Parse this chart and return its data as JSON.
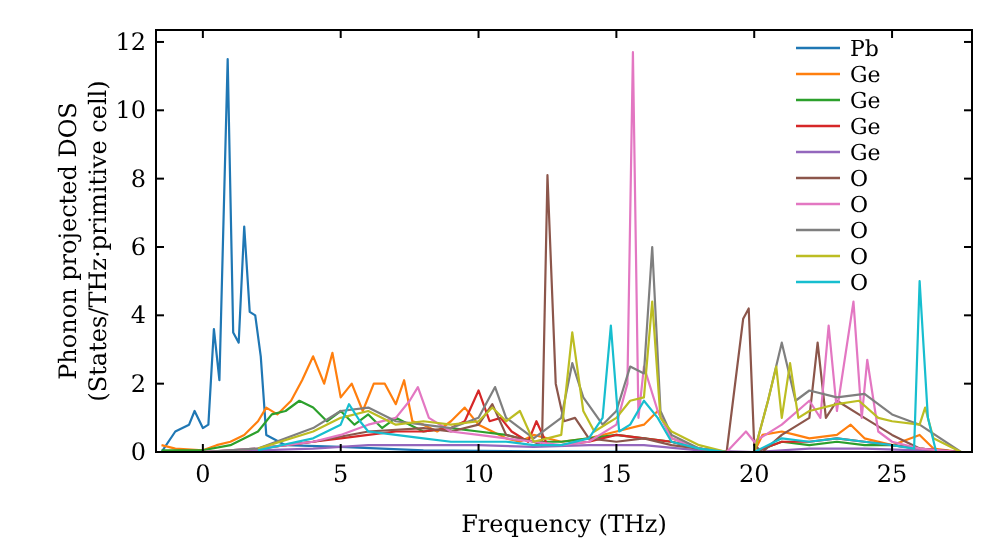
{
  "chart_data": {
    "type": "line",
    "xlabel": "Frequency (THz)",
    "ylabel": "Phonon projected DOS\n(States/THz·primitive cell)",
    "xlim": [
      -1.7,
      27.9
    ],
    "ylim": [
      0,
      12.35
    ],
    "xticks": [
      0,
      5,
      10,
      15,
      20,
      25
    ],
    "yticks": [
      0,
      2,
      4,
      6,
      8,
      10,
      12
    ],
    "grid": false,
    "legend": "top right",
    "marker": "none",
    "line_style": "solid",
    "series": [
      {
        "name": "Pb",
        "color": "#1f77b4",
        "x": [
          -1.5,
          -1,
          -0.5,
          -0.3,
          0,
          0.2,
          0.4,
          0.6,
          0.9,
          1.1,
          1.3,
          1.5,
          1.7,
          1.9,
          2.1,
          2.3,
          3,
          5,
          8,
          12,
          18,
          27.5
        ],
        "values": [
          0,
          0.6,
          0.8,
          1.2,
          0.7,
          0.8,
          3.6,
          2.1,
          11.5,
          3.5,
          3.2,
          6.6,
          4.1,
          4.0,
          2.8,
          0.5,
          0.2,
          0.15,
          0.05,
          0.02,
          0,
          0
        ]
      },
      {
        "name": "Ge",
        "color": "#ff7f0e",
        "x": [
          -1.5,
          -1,
          0,
          0.5,
          1,
          1.5,
          2,
          2.3,
          2.7,
          3.2,
          3.6,
          4,
          4.4,
          4.7,
          5,
          5.4,
          5.8,
          6.2,
          6.6,
          7,
          7.3,
          7.6,
          8,
          8.5,
          9,
          9.5,
          10,
          10.5,
          11,
          11.5,
          12,
          13,
          14,
          15,
          16,
          16.5,
          17,
          18,
          19,
          20,
          20.3,
          21,
          21.5,
          22,
          23,
          23.5,
          24,
          25,
          26,
          26.5,
          27.5
        ],
        "values": [
          0.2,
          0.1,
          0.05,
          0.2,
          0.3,
          0.5,
          0.9,
          1.3,
          1.1,
          1.5,
          2.1,
          2.8,
          2.0,
          2.9,
          1.6,
          2.0,
          1.2,
          2.0,
          2.0,
          1.4,
          2.1,
          0.9,
          0.8,
          0.6,
          0.9,
          1.3,
          0.8,
          0.6,
          0.4,
          0.3,
          0.5,
          0.3,
          0.4,
          0.6,
          0.8,
          1.2,
          0.4,
          0.1,
          0,
          0,
          0.5,
          0.6,
          0.5,
          0.4,
          0.5,
          0.8,
          0.4,
          0.2,
          0.5,
          0.1,
          0
        ]
      },
      {
        "name": "Ge",
        "color": "#2ca02c",
        "x": [
          -1.5,
          0,
          1,
          2,
          2.5,
          3,
          3.5,
          4,
          4.5,
          5,
          5.5,
          6,
          6.5,
          7,
          7.5,
          8,
          9,
          10,
          11,
          12,
          13,
          14,
          15,
          16,
          17,
          18,
          19,
          20,
          21,
          22,
          23,
          24,
          25,
          26,
          27.5
        ],
        "values": [
          0.05,
          0.05,
          0.2,
          0.6,
          1.1,
          1.2,
          1.5,
          1.3,
          0.9,
          1.2,
          0.8,
          1.1,
          0.7,
          1.0,
          0.8,
          0.6,
          0.7,
          0.6,
          0.5,
          0.3,
          0.3,
          0.4,
          0.5,
          0.4,
          0.3,
          0.1,
          0,
          0,
          0.3,
          0.2,
          0.3,
          0.2,
          0.2,
          0.1,
          0
        ]
      },
      {
        "name": "Ge",
        "color": "#d62728",
        "x": [
          2,
          4,
          5,
          6,
          7,
          8,
          9,
          9.5,
          10,
          10.4,
          10.8,
          11.2,
          11.8,
          12.1,
          12.5,
          13,
          14,
          15,
          16,
          17,
          18,
          19,
          20,
          21,
          22,
          23,
          24,
          25,
          26,
          27.5
        ],
        "values": [
          0.1,
          0.3,
          0.4,
          0.5,
          0.6,
          0.6,
          0.7,
          0.9,
          1.8,
          0.9,
          1.0,
          0.6,
          0.3,
          0.9,
          0.2,
          0.2,
          0.3,
          0.5,
          0.4,
          0.3,
          0.1,
          0,
          0,
          0.3,
          0.3,
          0.4,
          0.3,
          0.2,
          0.1,
          0
        ]
      },
      {
        "name": "Ge",
        "color": "#9467bd",
        "x": [
          -1.5,
          0,
          2,
          4,
          6,
          8,
          10,
          12,
          14,
          16,
          18,
          20,
          22,
          24,
          26,
          27.5
        ],
        "values": [
          0,
          0,
          0.05,
          0.1,
          0.2,
          0.2,
          0.2,
          0.15,
          0.2,
          0.2,
          0.05,
          0,
          0.1,
          0.1,
          0.05,
          0
        ]
      },
      {
        "name": "O",
        "color": "#8c564b",
        "x": [
          -1.5,
          0,
          2,
          4,
          6,
          8,
          9,
          10,
          10.5,
          11,
          12,
          12.3,
          12.5,
          12.8,
          13.1,
          13.5,
          14,
          15,
          16,
          17,
          18,
          19,
          19.6,
          19.8,
          20,
          20.3,
          21,
          22,
          22.3,
          22.6,
          23,
          24,
          25,
          26,
          27.5
        ],
        "values": [
          0,
          0,
          0.1,
          0.3,
          0.6,
          0.7,
          0.6,
          0.8,
          1.4,
          0.5,
          0.3,
          0.2,
          8.1,
          2.0,
          0.9,
          1.0,
          0.4,
          0.3,
          0.4,
          0.2,
          0.1,
          0,
          3.9,
          4.2,
          0.2,
          0,
          0.5,
          1.0,
          3.2,
          1.0,
          1.5,
          1.0,
          0.5,
          0.1,
          0
        ]
      },
      {
        "name": "O",
        "color": "#e377c2",
        "x": [
          -1.5,
          0,
          2,
          4,
          5,
          6,
          7,
          7.5,
          7.8,
          8.2,
          9,
          10,
          11,
          12,
          13,
          14,
          15,
          15.4,
          15.6,
          15.8,
          16,
          16.5,
          17,
          18,
          19,
          19.7,
          20,
          21,
          22,
          22.4,
          22.7,
          23,
          23.6,
          23.9,
          24.1,
          24.5,
          25,
          26,
          27.5
        ],
        "values": [
          0,
          0,
          0.1,
          0.3,
          0.5,
          0.8,
          1.0,
          1.5,
          1.9,
          1.0,
          0.6,
          0.5,
          0.4,
          0.3,
          0.2,
          0.3,
          0.8,
          2.0,
          11.7,
          1.0,
          2.5,
          1.2,
          0.4,
          0.1,
          0,
          0.6,
          0.3,
          0.8,
          1.5,
          1.0,
          3.7,
          1.2,
          4.4,
          1.0,
          2.7,
          0.6,
          0.3,
          0.1,
          0
        ]
      },
      {
        "name": "O",
        "color": "#7f7f7f",
        "x": [
          -1.5,
          0,
          2,
          4,
          5,
          6,
          7,
          8,
          9,
          10,
          10.6,
          11,
          12,
          13,
          13.4,
          13.8,
          14.5,
          15,
          15.5,
          16,
          16.3,
          16.6,
          17,
          18,
          19,
          20,
          20.5,
          21,
          21.5,
          22,
          23,
          24,
          25,
          26,
          27.5
        ],
        "values": [
          0,
          0,
          0.1,
          0.7,
          1.2,
          1.3,
          0.9,
          0.8,
          0.7,
          1.0,
          1.9,
          1.0,
          0.4,
          1.0,
          2.6,
          1.6,
          0.8,
          1.2,
          2.5,
          2.3,
          6.0,
          1.2,
          0.5,
          0.1,
          0,
          0,
          1.5,
          3.2,
          1.5,
          1.8,
          1.6,
          1.7,
          1.1,
          0.8,
          0
        ]
      },
      {
        "name": "O",
        "color": "#bcbd22",
        "x": [
          2,
          4,
          5,
          6,
          7,
          8,
          9,
          10,
          10.5,
          11,
          11.5,
          12,
          13,
          13.4,
          13.8,
          14.2,
          15,
          15.5,
          16,
          16.3,
          16.6,
          17,
          18,
          19,
          20,
          20.5,
          20.8,
          21,
          21.3,
          21.6,
          22,
          23,
          23.8,
          24.5,
          25,
          26,
          26.2,
          26.5,
          27.5
        ],
        "values": [
          0.1,
          0.6,
          1.0,
          1.2,
          0.8,
          0.9,
          0.8,
          0.9,
          1.3,
          0.9,
          1.2,
          0.3,
          0.5,
          3.5,
          1.2,
          0.6,
          1.0,
          1.5,
          1.6,
          4.4,
          1.0,
          0.6,
          0.2,
          0,
          0,
          1.5,
          2.5,
          1.0,
          2.6,
          1.0,
          1.2,
          1.4,
          1.5,
          1.0,
          0.9,
          0.8,
          1.3,
          0.4,
          0
        ]
      },
      {
        "name": "O",
        "color": "#17becf",
        "x": [
          2,
          4,
          5,
          5.3,
          5.7,
          6,
          7,
          8,
          9,
          10,
          11,
          12,
          13,
          14,
          14.5,
          14.8,
          15.1,
          15.5,
          16,
          16.5,
          17,
          18,
          19,
          20,
          21,
          22,
          23,
          24,
          25,
          25.8,
          26,
          26.3,
          26.6
        ],
        "values": [
          0.05,
          0.4,
          0.8,
          1.4,
          0.9,
          0.6,
          0.5,
          0.4,
          0.3,
          0.3,
          0.3,
          0.2,
          0.2,
          0.4,
          1.0,
          3.7,
          0.6,
          0.8,
          1.5,
          1.0,
          0.3,
          0.1,
          0,
          0,
          0.4,
          0.3,
          0.4,
          0.3,
          0.2,
          0.1,
          5.0,
          1.0,
          0
        ]
      }
    ]
  }
}
